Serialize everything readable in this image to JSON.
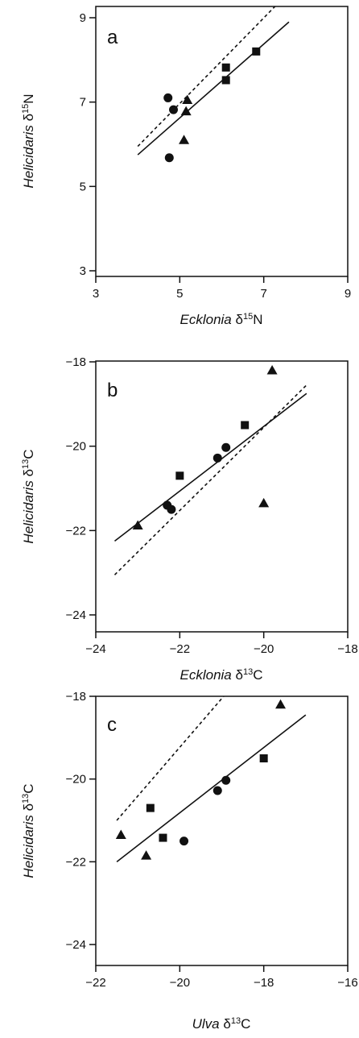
{
  "chart_data": [
    {
      "type": "scatter",
      "panel_label": "a",
      "xlabel": {
        "italic": "Ecklonia",
        "symbol": "δ",
        "sup": "15",
        "element": "N"
      },
      "ylabel": {
        "italic": "Helicidaris",
        "symbol": "δ",
        "sup": "15",
        "element": "N"
      },
      "xlim": [
        3,
        9
      ],
      "ylim": [
        3,
        9
      ],
      "xticks": [
        3,
        5,
        7,
        9
      ],
      "yticks": [
        3,
        5,
        7,
        9
      ],
      "grid": false,
      "series": [
        {
          "marker": "circle",
          "points": [
            [
              4.72,
              7.1
            ],
            [
              4.85,
              6.82
            ],
            [
              4.75,
              5.68
            ]
          ]
        },
        {
          "marker": "triangle",
          "points": [
            [
              5.18,
              7.05
            ],
            [
              5.15,
              6.78
            ],
            [
              5.1,
              6.1
            ]
          ]
        },
        {
          "marker": "square",
          "points": [
            [
              6.1,
              7.82
            ],
            [
              6.1,
              7.52
            ],
            [
              6.82,
              8.2
            ]
          ]
        }
      ],
      "lines": [
        {
          "style": "solid",
          "from": [
            4.0,
            5.75
          ],
          "to": [
            7.6,
            8.9
          ]
        },
        {
          "style": "dashed",
          "from": [
            4.0,
            5.95
          ],
          "to": [
            7.3,
            9.3
          ]
        }
      ]
    },
    {
      "type": "scatter",
      "panel_label": "b",
      "xlabel": {
        "italic": "Ecklonia",
        "symbol": "δ",
        "sup": "13",
        "element": "C"
      },
      "ylabel": {
        "italic": "Helicidaris",
        "symbol": "δ",
        "sup": "13",
        "element": "C"
      },
      "xlim": [
        -24,
        -18
      ],
      "ylim": [
        -24,
        -18
      ],
      "xticks": [
        -24,
        -22,
        -20,
        -18
      ],
      "yticks": [
        -24,
        -22,
        -20,
        -18
      ],
      "grid": false,
      "series": [
        {
          "marker": "circle",
          "points": [
            [
              -22.3,
              -21.4
            ],
            [
              -22.2,
              -21.5
            ],
            [
              -21.1,
              -20.28
            ],
            [
              -20.9,
              -20.03
            ]
          ]
        },
        {
          "marker": "triangle",
          "points": [
            [
              -23.0,
              -21.88
            ],
            [
              -20.0,
              -21.35
            ],
            [
              -19.8,
              -18.2
            ]
          ]
        },
        {
          "marker": "square",
          "points": [
            [
              -22.0,
              -20.7
            ],
            [
              -20.45,
              -19.5
            ]
          ]
        }
      ],
      "lines": [
        {
          "style": "solid",
          "from": [
            -23.55,
            -22.25
          ],
          "to": [
            -18.98,
            -18.75
          ]
        },
        {
          "style": "dashed",
          "from": [
            -23.55,
            -23.05
          ],
          "to": [
            -18.98,
            -18.55
          ]
        }
      ]
    },
    {
      "type": "scatter",
      "panel_label": "c",
      "xlabel": {
        "italic": "Ulva",
        "symbol": "δ",
        "sup": "13",
        "element": "C"
      },
      "ylabel": {
        "italic": "Helicidaris",
        "symbol": "δ",
        "sup": "13",
        "element": "C"
      },
      "xlim": [
        -22,
        -16
      ],
      "ylim": [
        -24,
        -18
      ],
      "xticks": [
        -22,
        -20,
        -18,
        -16
      ],
      "yticks": [
        -24,
        -22,
        -20,
        -18
      ],
      "grid": false,
      "series": [
        {
          "marker": "circle",
          "points": [
            [
              -19.9,
              -21.5
            ],
            [
              -19.1,
              -20.28
            ],
            [
              -18.9,
              -20.03
            ]
          ]
        },
        {
          "marker": "triangle",
          "points": [
            [
              -21.4,
              -21.35
            ],
            [
              -20.8,
              -21.85
            ],
            [
              -17.6,
              -18.2
            ]
          ]
        },
        {
          "marker": "square",
          "points": [
            [
              -20.7,
              -20.7
            ],
            [
              -20.4,
              -21.42
            ],
            [
              -18.0,
              -19.5
            ]
          ]
        }
      ],
      "lines": [
        {
          "style": "solid",
          "from": [
            -21.5,
            -22.0
          ],
          "to": [
            -17.0,
            -18.45
          ]
        },
        {
          "style": "dashed",
          "from": [
            -21.5,
            -21.0
          ],
          "to": [
            -18.7,
            -17.7
          ]
        }
      ]
    }
  ]
}
